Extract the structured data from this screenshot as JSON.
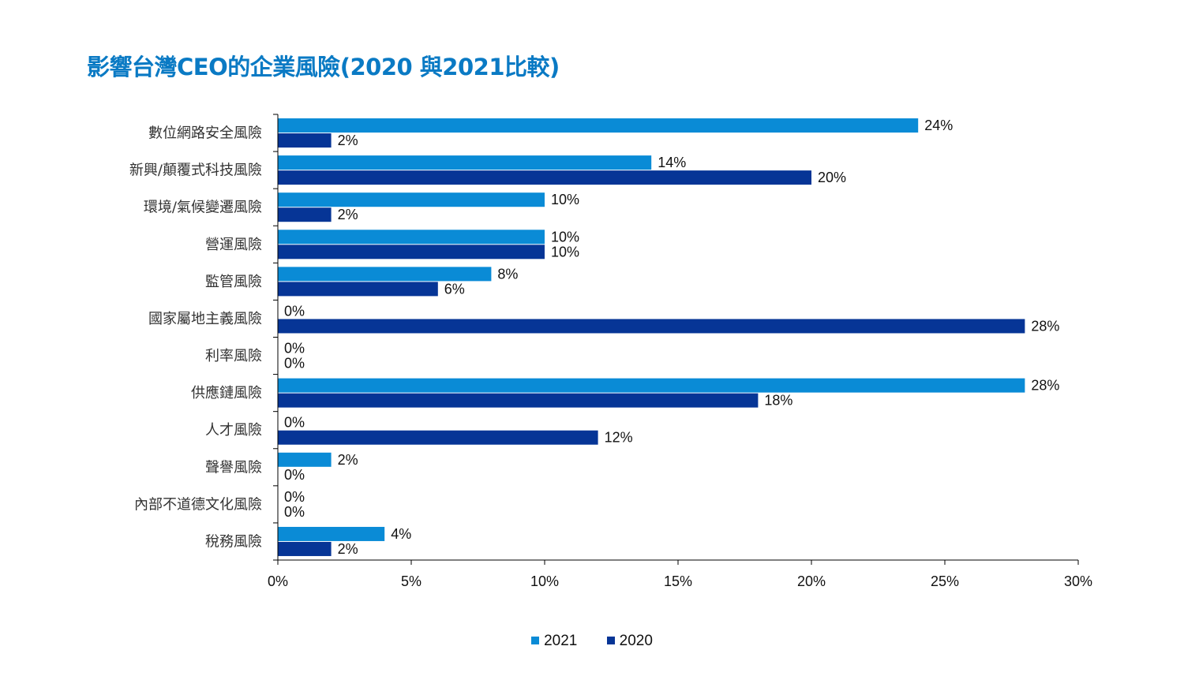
{
  "chart_data": {
    "type": "bar",
    "orientation": "horizontal",
    "title": "影響台灣CEO的企業風險(2020 與2021比較)",
    "xlabel": "",
    "ylabel": "",
    "xlim": [
      0,
      30
    ],
    "x_ticks": [
      0,
      5,
      10,
      15,
      20,
      25,
      30
    ],
    "x_tick_labels": [
      "0%",
      "5%",
      "10%",
      "15%",
      "20%",
      "25%",
      "30%"
    ],
    "grid": false,
    "legend_position": "bottom",
    "categories": [
      "數位網路安全風險",
      "新興/顛覆式科技風險",
      "環境/氣候變遷風險",
      "營運風險",
      "監管風險",
      "國家屬地主義風險",
      "利率風險",
      "供應鏈風險",
      "人才風險",
      "聲譽風險",
      "內部不道德文化風險",
      "稅務風險"
    ],
    "series": [
      {
        "name": "2021",
        "color": "#0a8bd6",
        "values": [
          24,
          14,
          10,
          10,
          8,
          0,
          0,
          28,
          0,
          2,
          0,
          4
        ],
        "labels": [
          "24%",
          "14%",
          "10%",
          "10%",
          "8%",
          "0%",
          "0%",
          "28%",
          "0%",
          "2%",
          "0%",
          "4%"
        ]
      },
      {
        "name": "2020",
        "color": "#063596",
        "values": [
          2,
          20,
          2,
          10,
          6,
          28,
          0,
          18,
          12,
          0,
          0,
          2
        ],
        "labels": [
          "2%",
          "20%",
          "2%",
          "10%",
          "6%",
          "28%",
          "0%",
          "18%",
          "12%",
          "0%",
          "0%",
          "2%"
        ]
      }
    ]
  }
}
